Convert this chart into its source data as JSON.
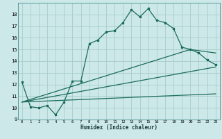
{
  "title": "",
  "xlabel": "Humidex (Indice chaleur)",
  "bg_color": "#cce8e8",
  "line_color": "#1a6b5a",
  "grid_color": "#aacccc",
  "xlim": [
    -0.5,
    23.5
  ],
  "ylim": [
    9,
    19
  ],
  "yticks": [
    9,
    10,
    11,
    12,
    13,
    14,
    15,
    16,
    17,
    18
  ],
  "xticks": [
    0,
    1,
    2,
    3,
    4,
    5,
    6,
    7,
    8,
    9,
    10,
    11,
    12,
    13,
    14,
    15,
    16,
    17,
    18,
    19,
    20,
    21,
    22,
    23
  ],
  "line1_x": [
    0,
    1,
    2,
    3,
    4,
    5,
    6,
    7,
    8,
    9,
    10,
    11,
    12,
    13,
    14,
    15,
    16,
    17,
    18,
    19,
    20,
    21,
    22,
    23
  ],
  "line1_y": [
    12.2,
    10.1,
    10.0,
    10.2,
    9.4,
    10.5,
    12.3,
    12.3,
    15.5,
    15.8,
    16.5,
    16.6,
    17.3,
    18.4,
    17.8,
    18.5,
    17.5,
    17.3,
    16.8,
    15.2,
    15.0,
    14.7,
    14.1,
    13.7
  ],
  "line2_x": [
    0,
    23
  ],
  "line2_y": [
    10.5,
    13.5
  ],
  "line3_x": [
    0,
    23
  ],
  "line3_y": [
    10.5,
    11.2
  ],
  "line4_x": [
    0,
    20,
    23
  ],
  "line4_y": [
    10.5,
    15.0,
    14.7
  ]
}
